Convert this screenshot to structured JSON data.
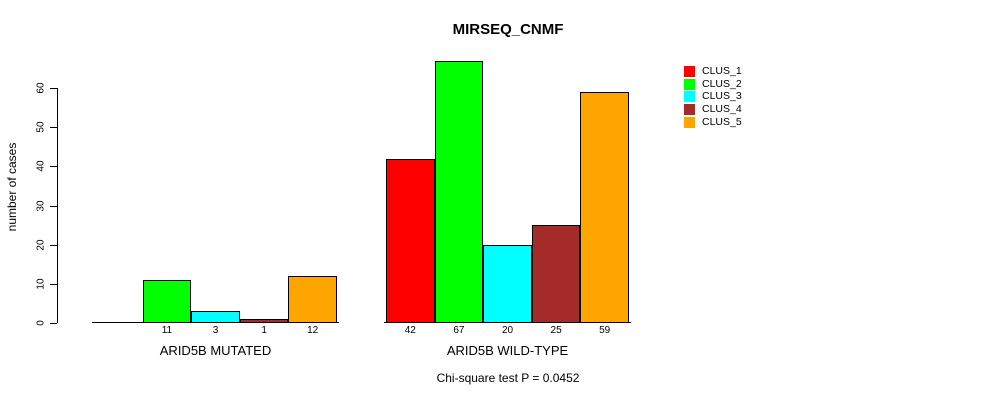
{
  "chart_data": {
    "type": "bar",
    "title": "MIRSEQ_CNMF",
    "ylabel": "number of cases",
    "ylim": [
      0,
      67
    ],
    "yticks": [
      0,
      10,
      20,
      30,
      40,
      50,
      60
    ],
    "grid": false,
    "legend_position": "right",
    "series": [
      {
        "name": "CLUS_1",
        "color": "#ff0000"
      },
      {
        "name": "CLUS_2",
        "color": "#00ff00"
      },
      {
        "name": "CLUS_3",
        "color": "#00ffff"
      },
      {
        "name": "CLUS_4",
        "color": "#a52a2a"
      },
      {
        "name": "CLUS_5",
        "color": "#ffa500"
      }
    ],
    "categories": [
      "ARID5B MUTATED",
      "ARID5B WILD-TYPE"
    ],
    "groups": [
      {
        "category": "ARID5B MUTATED",
        "values": [
          0,
          11,
          3,
          1,
          12
        ],
        "bar_labels": [
          "",
          "11",
          "3",
          "1",
          "12"
        ]
      },
      {
        "category": "ARID5B WILD-TYPE",
        "values": [
          42,
          67,
          20,
          25,
          59
        ],
        "bar_labels": [
          "42",
          "67",
          "20",
          "25",
          "59"
        ]
      }
    ],
    "annotation": "Chi-square test P = 0.0452"
  }
}
